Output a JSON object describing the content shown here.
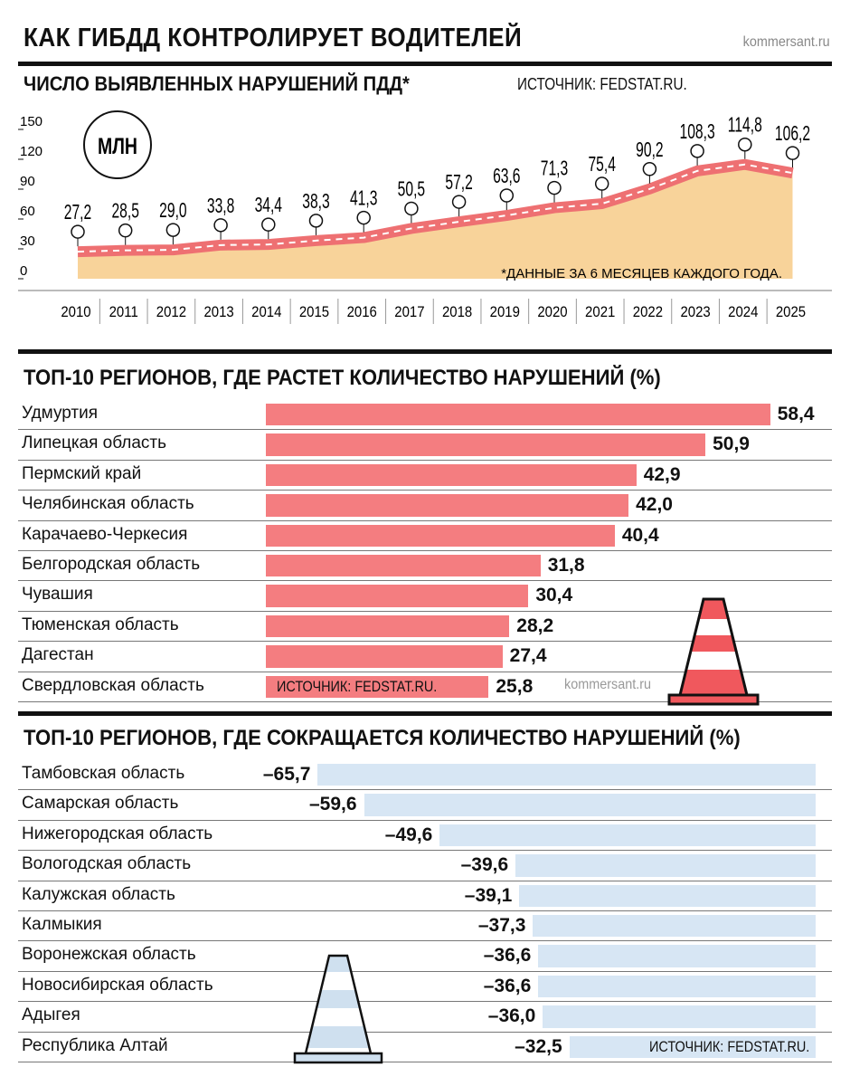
{
  "header": {
    "title": "КАК ГИБДД КОНТРОЛИРУЕТ ВОДИТЕЛЕЙ",
    "site": "kommersant.ru"
  },
  "colors": {
    "area": "#f8d39a",
    "band": "#ee7072",
    "growth_bar": "#f47d80",
    "decline_bar": "#d7e6f4",
    "cone_red": "#f0585d",
    "cone_blue": "#cfe0ef"
  },
  "chart_data": [
    {
      "type": "area",
      "title": "ЧИСЛО ВЫЯВЛЕННЫХ НАРУШЕНИЙ ПДД*",
      "source": "ИСТОЧНИК: FEDSTAT.RU.",
      "unit": "МЛН",
      "note": "*ДАННЫЕ ЗА 6 МЕСЯЦЕВ КАЖДОГО ГОДА.",
      "x": [
        "2010",
        "2011",
        "2012",
        "2013",
        "2014",
        "2015",
        "2016",
        "2017",
        "2018",
        "2019",
        "2020",
        "2021",
        "2022",
        "2023",
        "2024",
        "2025"
      ],
      "values": [
        27.2,
        28.5,
        29.0,
        33.8,
        34.4,
        38.3,
        41.3,
        50.5,
        57.2,
        63.6,
        71.3,
        75.4,
        90.2,
        108.3,
        114.8,
        106.2
      ],
      "value_labels": [
        "27,2",
        "28,5",
        "29,0",
        "33,8",
        "34,4",
        "38,3",
        "41,3",
        "50,5",
        "57,2",
        "63,6",
        "71,3",
        "75,4",
        "90,2",
        "108,3",
        "114,8",
        "106,2"
      ],
      "y_ticks": [
        0,
        30,
        60,
        90,
        120,
        150
      ],
      "y_tick_labels": [
        "0",
        "30",
        "60",
        "90",
        "120",
        "150"
      ],
      "ylim": [
        0,
        150
      ]
    },
    {
      "type": "bar",
      "title": "ТОП-10 РЕГИОНОВ, ГДЕ РАСТЕТ КОЛИЧЕСТВО НАРУШЕНИЙ (%)",
      "source": "ИСТОЧНИК: FEDSTAT.RU.",
      "site": "kommersant.ru",
      "categories": [
        "Удмуртия",
        "Липецкая область",
        "Пермский край",
        "Челябинская область",
        "Карачаево-Черкесия",
        "Белгородская область",
        "Чувашия",
        "Тюменская область",
        "Дагестан",
        "Свердловская область"
      ],
      "values": [
        58.4,
        50.9,
        42.9,
        42.0,
        40.4,
        31.8,
        30.4,
        28.2,
        27.4,
        25.8
      ],
      "value_labels": [
        "58,4",
        "50,9",
        "42,9",
        "42,0",
        "40,4",
        "31,8",
        "30,4",
        "28,2",
        "27,4",
        "25,8"
      ]
    },
    {
      "type": "bar",
      "title": "ТОП-10 РЕГИОНОВ, ГДЕ СОКРАЩАЕТСЯ КОЛИЧЕСТВО НАРУШЕНИЙ (%)",
      "source": "ИСТОЧНИК: FEDSTAT.RU.",
      "categories": [
        "Тамбовская область",
        "Самарская область",
        "Нижегородская область",
        "Вологодская область",
        "Калужская область",
        "Калмыкия",
        "Воронежская область",
        "Новосибирская область",
        "Адыгея",
        "Республика Алтай"
      ],
      "values": [
        -65.7,
        -59.6,
        -49.6,
        -39.6,
        -39.1,
        -37.3,
        -36.6,
        -36.6,
        -36.0,
        -32.5
      ],
      "value_labels": [
        "–65,7",
        "–59,6",
        "–49,6",
        "–39,6",
        "–39,1",
        "–37,3",
        "–36,6",
        "–36,6",
        "–36,0",
        "–32,5"
      ]
    }
  ]
}
